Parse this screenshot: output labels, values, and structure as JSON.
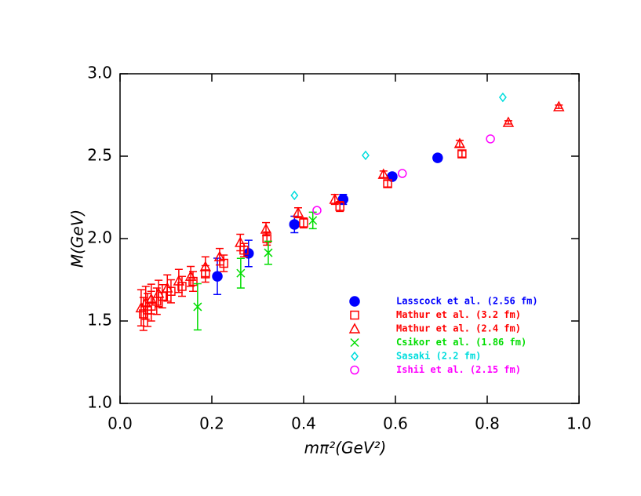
{
  "chart_data": {
    "type": "scatter",
    "xlabel": "mπ²(GeV²)",
    "ylabel": "M(GeV)",
    "xlim": [
      0,
      1.0
    ],
    "ylim": [
      1.0,
      3.0
    ],
    "xticks": [
      {
        "value": 0,
        "label": "0.0"
      },
      0.2,
      0.4,
      0.6,
      0.8,
      {
        "value": 1.0,
        "label": "1.0"
      }
    ],
    "yticks": [
      {
        "value": 1.0,
        "label": "1.0"
      },
      1.5,
      {
        "value": 2.0,
        "label": "2.0"
      },
      2.5,
      {
        "value": 3.0,
        "label": "3.0"
      }
    ],
    "legend": "lower right",
    "series": [
      {
        "name": "Lasscock et al. (2.56 fm)",
        "color": "#0000ff",
        "marker": "filled-circle",
        "x": [
          0.212,
          0.28,
          0.38,
          0.486,
          0.593,
          0.692
        ],
        "values": [
          1.771,
          1.91,
          2.086,
          2.238,
          2.376,
          2.49
        ],
        "errors": [
          0.11,
          0.08,
          0.05,
          0.03,
          0.02,
          0.02
        ]
      },
      {
        "name": "Mathur et al. (3.2 fm)",
        "color": "#ff0000",
        "marker": "square",
        "x": [
          0.051,
          0.06,
          0.068,
          0.08,
          0.092,
          0.111,
          0.135,
          0.159,
          0.186,
          0.226,
          0.27,
          0.32,
          0.4,
          0.479,
          0.583,
          0.745
        ],
        "values": [
          1.543,
          1.567,
          1.59,
          1.62,
          1.65,
          1.68,
          1.71,
          1.74,
          1.786,
          1.85,
          1.93,
          2.0,
          2.095,
          2.195,
          2.333,
          2.514
        ],
        "errors": [
          0.1,
          0.1,
          0.09,
          0.08,
          0.07,
          0.07,
          0.06,
          0.06,
          0.05,
          0.05,
          0.04,
          0.04,
          0.03,
          0.03,
          0.02,
          0.02
        ]
      },
      {
        "name": "Mathur et al. (2.4 fm)",
        "color": "#ff0000",
        "marker": "triangle",
        "x": [
          0.046,
          0.056,
          0.068,
          0.084,
          0.103,
          0.128,
          0.154,
          0.186,
          0.217,
          0.262,
          0.318,
          0.388,
          0.468,
          0.574,
          0.74,
          0.846,
          0.956
        ],
        "values": [
          1.58,
          1.61,
          1.633,
          1.667,
          1.7,
          1.743,
          1.771,
          1.829,
          1.89,
          1.976,
          2.057,
          2.157,
          2.238,
          2.39,
          2.576,
          2.705,
          2.8
        ],
        "errors": [
          0.11,
          0.1,
          0.09,
          0.08,
          0.08,
          0.07,
          0.06,
          0.06,
          0.05,
          0.05,
          0.04,
          0.03,
          0.03,
          0.02,
          0.02,
          0.01,
          0.01
        ]
      },
      {
        "name": "Csikor et al. (1.86 fm)",
        "color": "#00dd00",
        "marker": "cross",
        "x": [
          0.169,
          0.263,
          0.323,
          0.42
        ],
        "values": [
          1.586,
          1.79,
          1.914,
          2.11
        ],
        "errors": [
          0.14,
          0.09,
          0.07,
          0.05
        ]
      },
      {
        "name": "Sasaki (2.2 fm)",
        "color": "#00dddd",
        "marker": "diamond",
        "x": [
          0.38,
          0.535,
          0.834
        ],
        "values": [
          2.262,
          2.505,
          2.857
        ]
      },
      {
        "name": "Ishii et al. (2.15 fm)",
        "color": "#ff00ff",
        "marker": "circle",
        "x": [
          0.429,
          0.615,
          0.807
        ],
        "values": [
          2.171,
          2.395,
          2.605
        ]
      }
    ]
  }
}
